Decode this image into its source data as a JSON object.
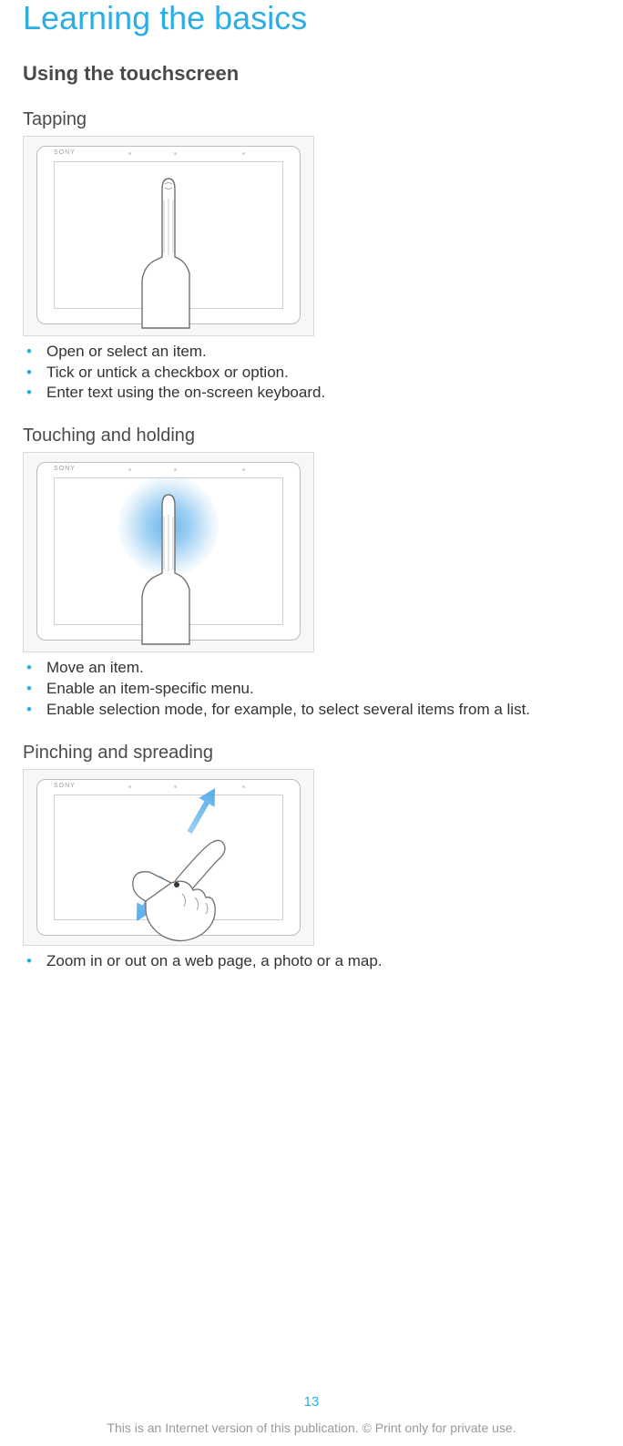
{
  "colors": {
    "accent": "#2aaee5",
    "heading": "#4a4a4a",
    "body_text": "#333333",
    "footer_text": "#9a9a9a",
    "illus_border": "#d9d9d9",
    "illus_bg": "#f7f7f7",
    "tablet_border": "#bdbdbd",
    "glow": "#4da8e9"
  },
  "typography": {
    "chapter_fontsize": 36,
    "section_fontsize": 22,
    "sub_fontsize": 20,
    "body_fontsize": 17,
    "footer_fontsize": 14
  },
  "chapter_title": "Learning the basics",
  "section_title": "Using the touchscreen",
  "brand_label": "SONY",
  "sections": {
    "tapping": {
      "heading": "Tapping",
      "bullets": [
        "Open or select an item.",
        "Tick or untick a checkbox or option.",
        "Enter text using the on-screen keyboard."
      ]
    },
    "holding": {
      "heading": "Touching and holding",
      "bullets": [
        "Move an item.",
        "Enable an item-specific menu.",
        "Enable selection mode, for example, to select several items from a list."
      ]
    },
    "pinching": {
      "heading": "Pinching and spreading",
      "bullets": [
        "Zoom in or out on a web page, a photo or a map."
      ]
    }
  },
  "page_number": "13",
  "footer": "This is an Internet version of this publication. © Print only for private use."
}
